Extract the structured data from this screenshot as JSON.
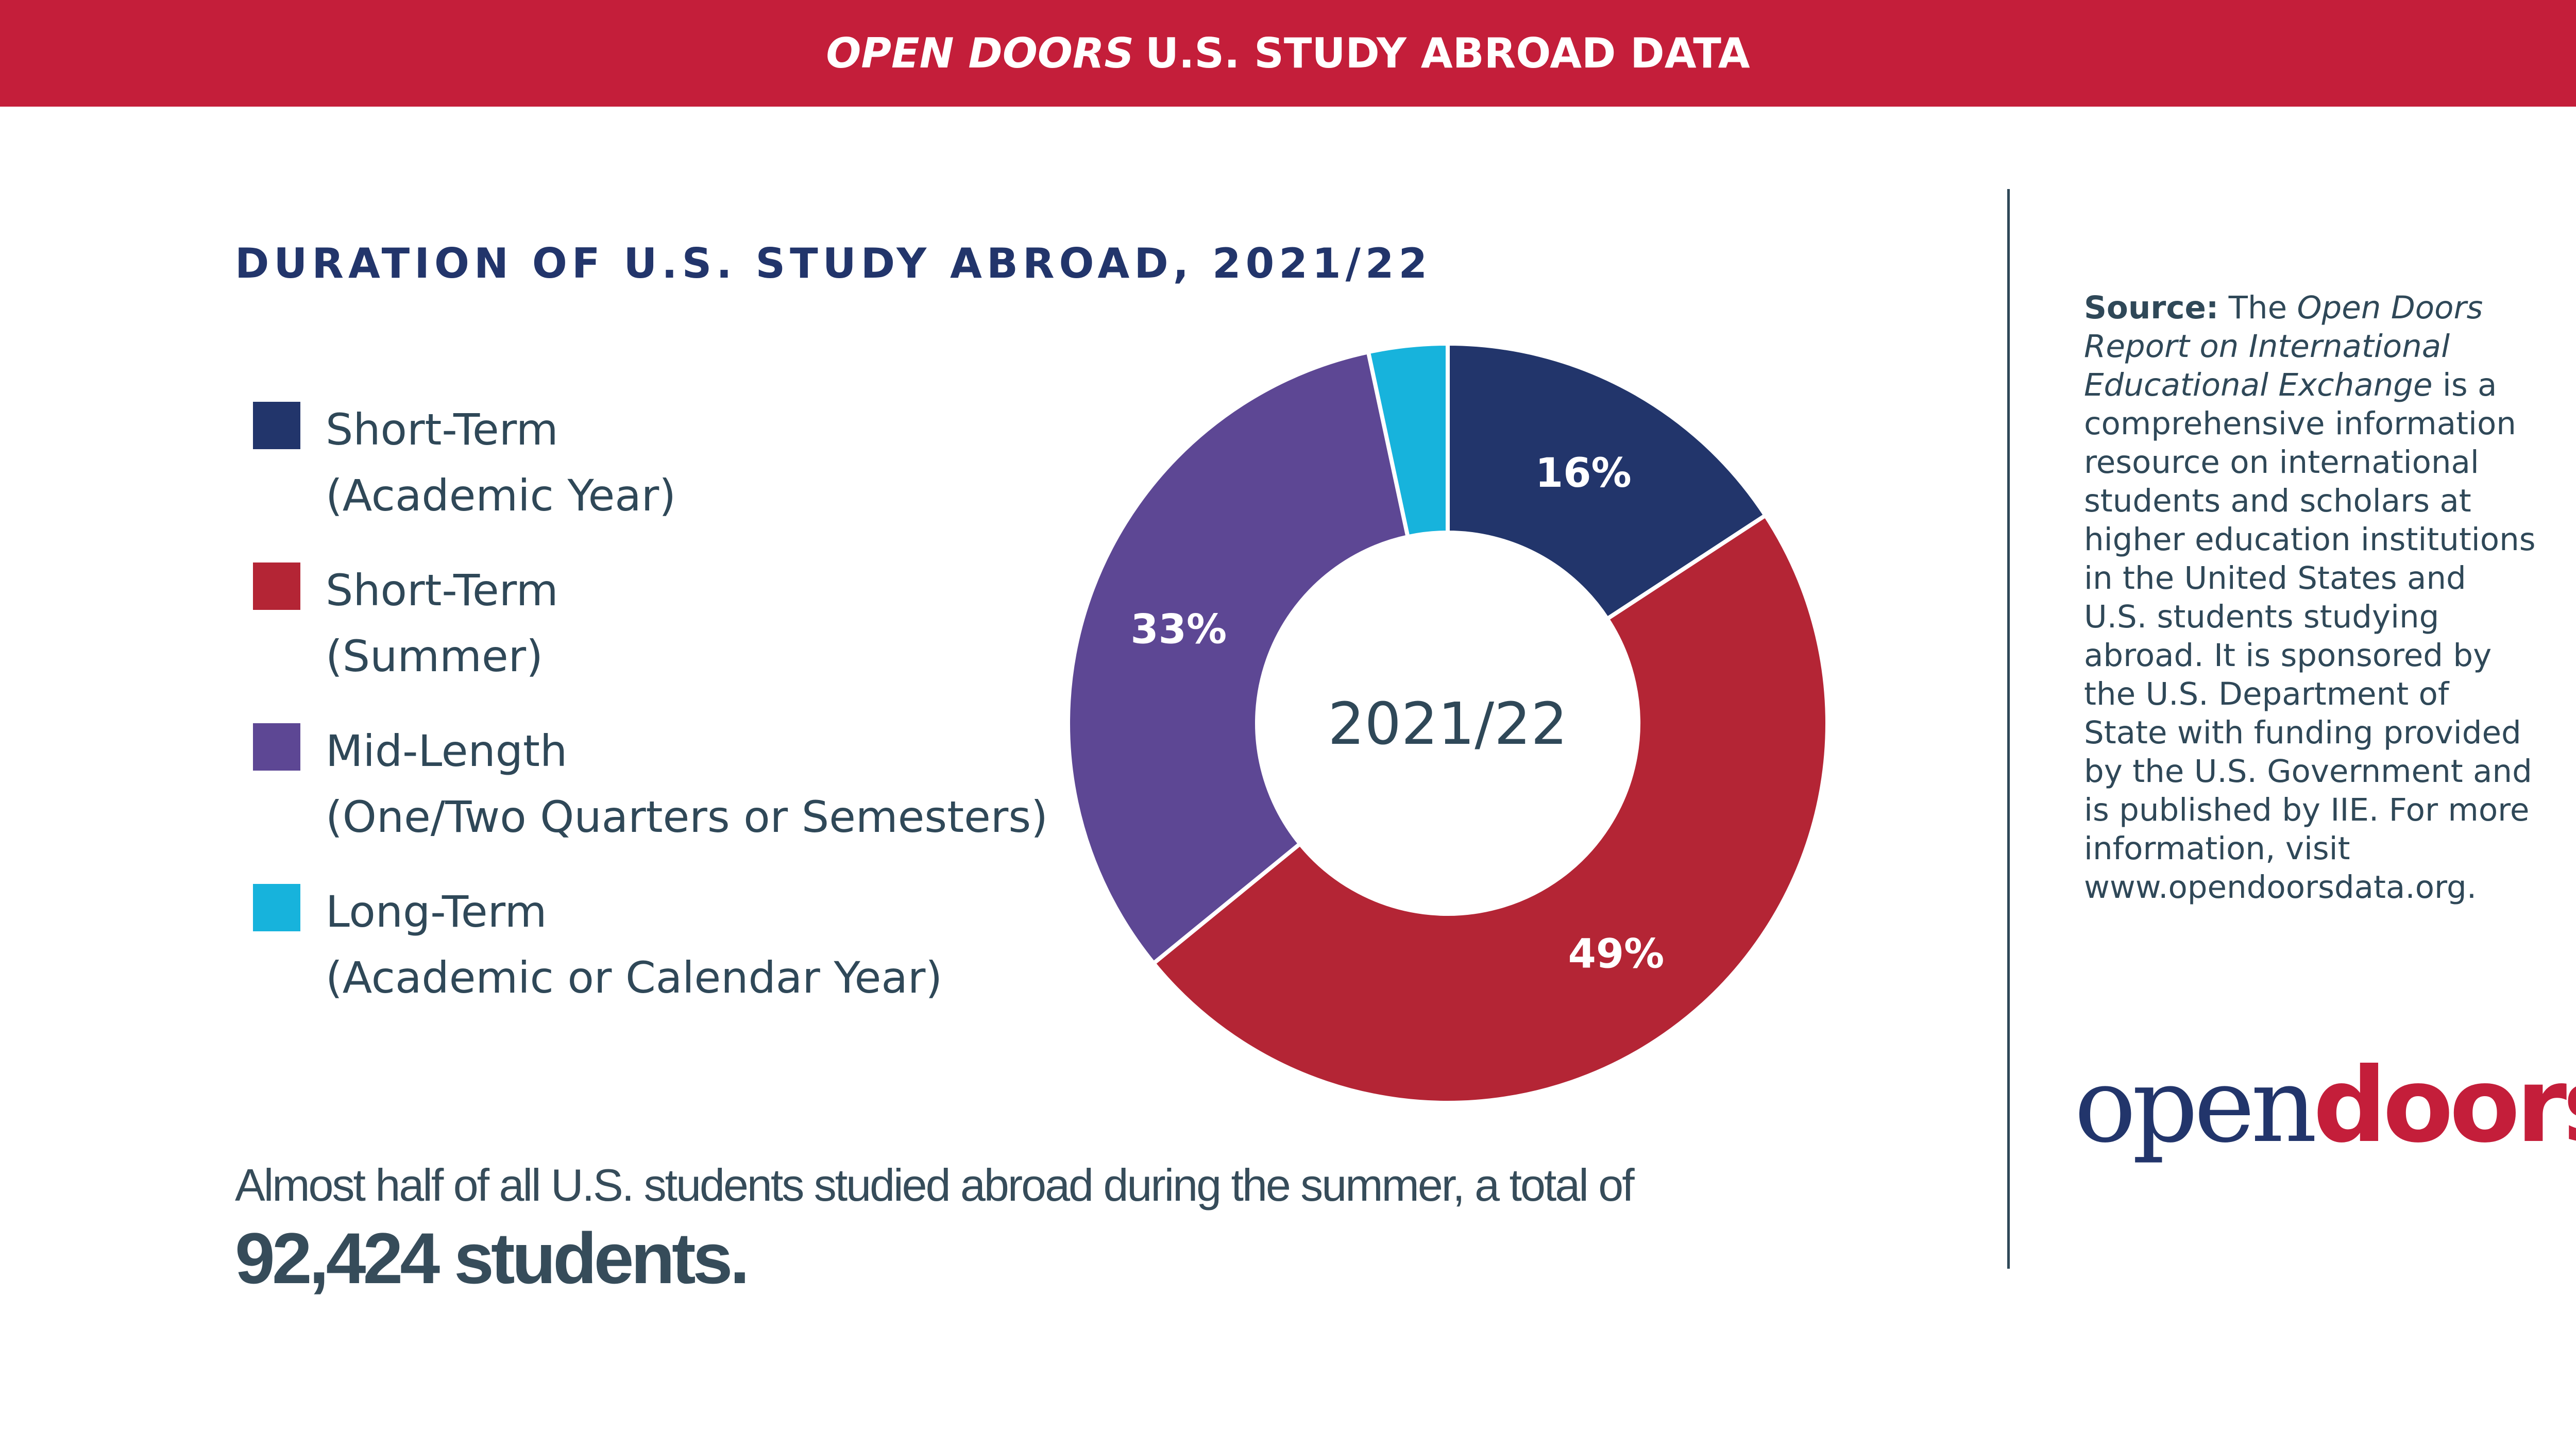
{
  "header": {
    "title_italic": "OPEN DOORS",
    "title_rest": "U.S. STUDY ABROAD DATA"
  },
  "colors": {
    "header": "#C41E3A",
    "title": "#22356B"
  },
  "chart_data": {
    "type": "pie",
    "variant": "donut",
    "title": "DURATION OF U.S. STUDY ABROAD, 2021/22",
    "center_label": "2021/22",
    "legend_placement": "left",
    "slices": [
      {
        "name": "Short-Term",
        "sub": "(Academic Year)",
        "value": 16,
        "label": "16%",
        "color": "#22356B"
      },
      {
        "name": "Short-Term",
        "sub": "(Summer)",
        "value": 49,
        "label": "49%",
        "color": "#B42535"
      },
      {
        "name": "Mid-Length",
        "sub": "(One/Two Quarters or Semesters)",
        "value": 33,
        "label": "33%",
        "color": "#5D4794"
      },
      {
        "name": "Long-Term",
        "sub": "(Academic or Calendar Year)",
        "value": 3.4,
        "label": "",
        "color": "#17B3DC"
      }
    ]
  },
  "summary": {
    "line1": "Almost half of all U.S. students studied abroad during the summer, a total of",
    "line2": "92,424 students."
  },
  "source": {
    "label": "Source:",
    "t1": " The ",
    "i1": "Open Doors Report on International Educational Exchange",
    "t2": " is a comprehensive information resource on international students and scholars at higher education institutions in the United States and U.S. students studying abroad. It is sponsored by the U.S. Department of State with funding provided by the U.S. Government and is published by IIE. For more information, visit www.opendoorsdata.org."
  },
  "logo": {
    "part1": "open",
    "part2": "doors",
    "mark": "®"
  }
}
